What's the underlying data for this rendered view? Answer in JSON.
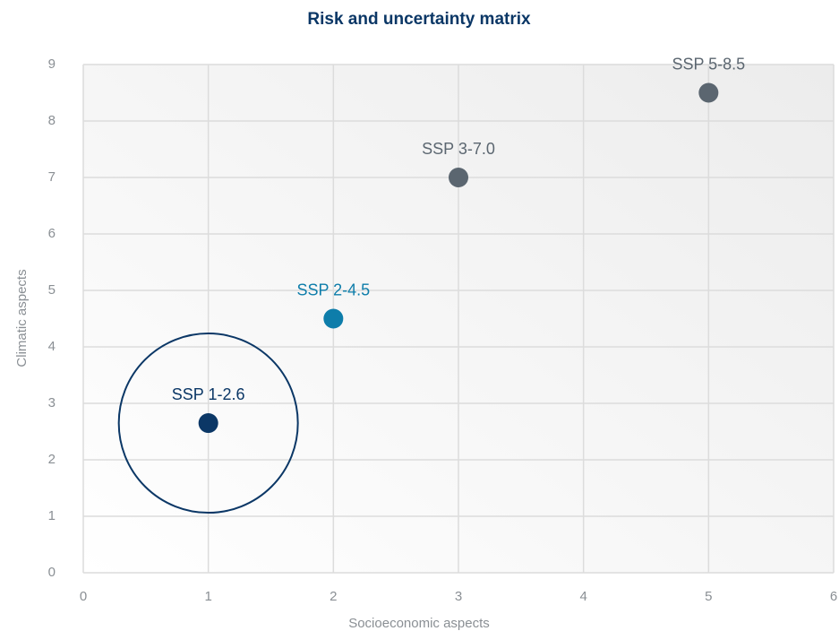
{
  "chart_data": {
    "type": "scatter",
    "title": "Risk and uncertainty matrix",
    "x_label": "Socioeconomic aspects",
    "y_label": "Climatic aspects",
    "xlim": [
      0,
      6
    ],
    "xticks": [
      0,
      1,
      2,
      3,
      4,
      5,
      6
    ],
    "ylim": [
      0,
      9
    ],
    "yticks": [
      0,
      1,
      2,
      3,
      4,
      5,
      6,
      7,
      8,
      9
    ],
    "grid": true,
    "series": [
      {
        "name": "SSP 1-2.6",
        "color": "#0b3766",
        "x": [
          1
        ],
        "values": [
          2.65
        ]
      },
      {
        "name": "SSP 2-4.5",
        "color": "#0e7daa",
        "x": [
          2
        ],
        "values": [
          4.5
        ]
      },
      {
        "name": "SSP 3-7.0",
        "color": "#5b6670",
        "x": [
          3
        ],
        "values": [
          7
        ]
      },
      {
        "name": "SSP 5-8.5",
        "color": "#5b6670",
        "x": [
          5
        ],
        "values": [
          8.5
        ]
      }
    ]
  }
}
